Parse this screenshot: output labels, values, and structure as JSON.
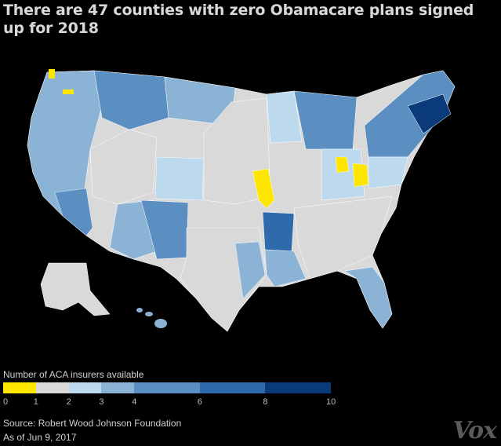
{
  "title": "There are 47 counties with zero Obamacare plans signed up for 2018",
  "legend": {
    "title": "Number of ACA insurers available",
    "bins": [
      {
        "from": 0,
        "to": 1,
        "color": "#ffe600"
      },
      {
        "from": 1,
        "to": 2,
        "color": "#d9d9d9"
      },
      {
        "from": 2,
        "to": 3,
        "color": "#bcd9ee"
      },
      {
        "from": 3,
        "to": 4,
        "color": "#8bb3d6"
      },
      {
        "from": 4,
        "to": 6,
        "color": "#5b8fc2"
      },
      {
        "from": 6,
        "to": 8,
        "color": "#2f6bab"
      },
      {
        "from": 8,
        "to": 10,
        "color": "#0b3a7a"
      }
    ],
    "ticks": [
      "0",
      "1",
      "2",
      "3",
      "4",
      "6",
      "8",
      "10"
    ]
  },
  "source": "Source: Robert Wood Johnson Foundation",
  "as_of": "As of Jun 9, 2017",
  "logo": "Vox"
}
